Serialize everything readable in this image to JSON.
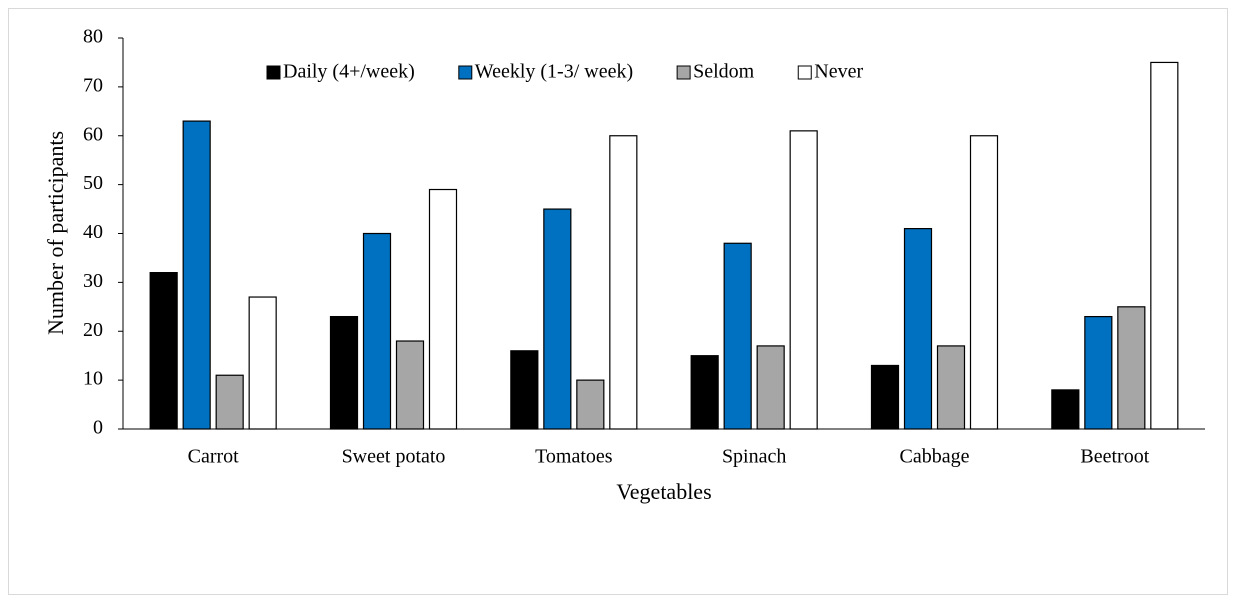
{
  "chart_data": {
    "type": "bar",
    "xlabel": "Vegetables",
    "ylabel": "Number of participants",
    "categories": [
      "Carrot",
      "Sweet potato",
      "Tomatoes",
      "Spinach",
      "Cabbage",
      "Beetroot"
    ],
    "series": [
      {
        "name": "Daily (4+/week)",
        "color": "#000000",
        "values": [
          32,
          23,
          16,
          15,
          13,
          8
        ]
      },
      {
        "name": "Weekly (1-3/ week)",
        "color": "#0070c0",
        "values": [
          63,
          40,
          45,
          38,
          41,
          23
        ]
      },
      {
        "name": "Seldom",
        "color": "#a6a6a6",
        "values": [
          11,
          18,
          10,
          17,
          17,
          25
        ]
      },
      {
        "name": "Never",
        "color": "#ffffff",
        "values": [
          27,
          49,
          60,
          61,
          60,
          75
        ]
      }
    ],
    "ylim": [
      0,
      80
    ],
    "yticks": [
      0,
      10,
      20,
      30,
      40,
      50,
      60,
      70,
      80
    ],
    "grid": false,
    "legend": "top"
  }
}
